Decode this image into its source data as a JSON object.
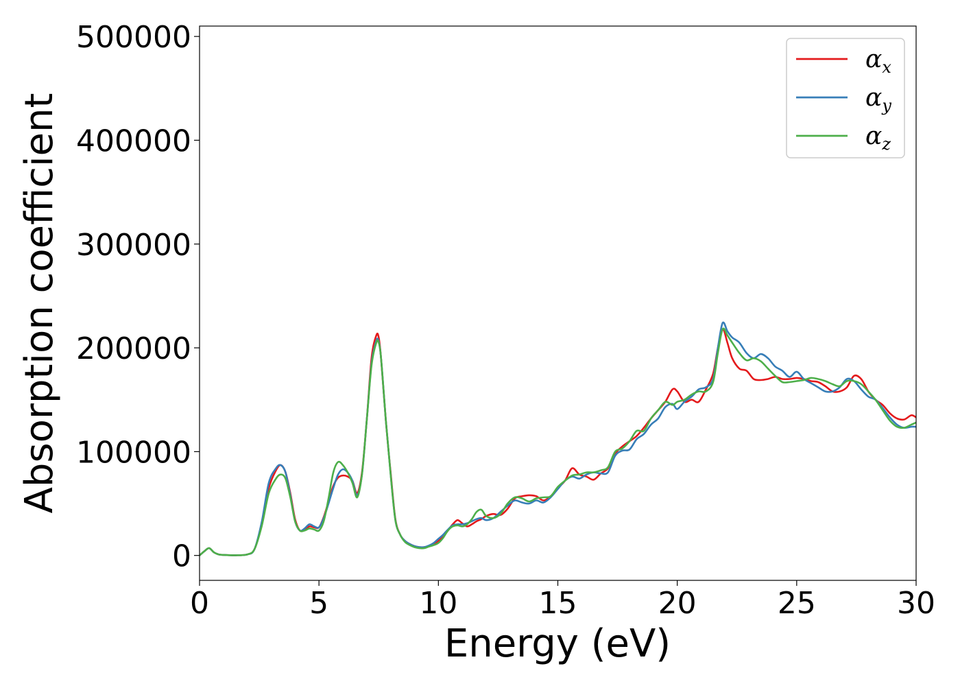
{
  "chart_data": {
    "type": "line",
    "xlabel": "Energy (eV)",
    "ylabel": "Absorption coefficient",
    "xlim": [
      0,
      30
    ],
    "ylim": [
      -24000,
      510000
    ],
    "xticks": [
      0,
      5,
      10,
      15,
      20,
      25,
      30
    ],
    "yticks": [
      0,
      100000,
      200000,
      300000,
      400000,
      500000
    ],
    "xtick_labels": [
      "0",
      "5",
      "10",
      "15",
      "20",
      "25",
      "30"
    ],
    "ytick_labels": [
      "0",
      "100000",
      "200000",
      "300000",
      "400000",
      "500000"
    ],
    "grid": false,
    "legend_position": "top-right",
    "series": [
      {
        "name": "αx",
        "symbol": "α",
        "subscript": "x",
        "color": "#e41a1c",
        "x": [
          0,
          0.2,
          0.4,
          0.6,
          0.8,
          1.0,
          1.5,
          2.0,
          2.3,
          2.6,
          2.9,
          3.2,
          3.4,
          3.6,
          3.8,
          4.0,
          4.2,
          4.4,
          4.6,
          4.8,
          5.0,
          5.2,
          5.4,
          5.6,
          5.8,
          6.0,
          6.2,
          6.4,
          6.6,
          6.8,
          7.0,
          7.2,
          7.4,
          7.5,
          7.6,
          7.8,
          8.0,
          8.2,
          8.4,
          8.6,
          8.8,
          9.0,
          9.2,
          9.4,
          9.6,
          9.8,
          10.0,
          10.2,
          10.4,
          10.6,
          10.8,
          11.0,
          11.2,
          11.4,
          11.6,
          11.8,
          12.0,
          12.3,
          12.6,
          12.9,
          13.2,
          13.5,
          13.8,
          14.1,
          14.4,
          14.7,
          15.0,
          15.3,
          15.6,
          15.9,
          16.2,
          16.5,
          16.8,
          17.1,
          17.4,
          17.7,
          18.0,
          18.3,
          18.6,
          18.9,
          19.2,
          19.5,
          19.8,
          20.0,
          20.3,
          20.6,
          20.9,
          21.2,
          21.5,
          21.7,
          21.9,
          22.1,
          22.3,
          22.6,
          22.9,
          23.2,
          23.5,
          23.8,
          24.1,
          24.4,
          24.7,
          25.0,
          25.3,
          25.6,
          25.9,
          26.2,
          26.5,
          26.8,
          27.1,
          27.4,
          27.7,
          28.0,
          28.3,
          28.6,
          28.9,
          29.2,
          29.5,
          29.8,
          30.0
        ],
        "y": [
          0,
          4000,
          7000,
          3000,
          1000,
          500,
          200,
          1000,
          6000,
          30000,
          65000,
          82000,
          87000,
          80000,
          60000,
          35000,
          24000,
          25000,
          28000,
          27000,
          27000,
          37000,
          52000,
          67000,
          75000,
          77000,
          76000,
          72000,
          60000,
          80000,
          130000,
          190000,
          212000,
          210000,
          190000,
          130000,
          80000,
          35000,
          20000,
          14000,
          11000,
          9000,
          8000,
          8000,
          9000,
          11000,
          14000,
          18000,
          24000,
          30000,
          34000,
          31000,
          28000,
          30000,
          33000,
          35000,
          38000,
          40000,
          39000,
          45000,
          55000,
          57000,
          58000,
          57000,
          53000,
          57000,
          65000,
          72000,
          84000,
          78000,
          76000,
          73000,
          79000,
          84000,
          98000,
          105000,
          110000,
          115000,
          123000,
          132000,
          140000,
          148000,
          160000,
          158000,
          148000,
          150000,
          148000,
          160000,
          175000,
          200000,
          218000,
          205000,
          190000,
          180000,
          178000,
          170000,
          169000,
          170000,
          172000,
          170000,
          170000,
          171000,
          170000,
          168000,
          167000,
          163000,
          158000,
          158000,
          162000,
          173000,
          170000,
          158000,
          150000,
          145000,
          137000,
          132000,
          131000,
          135000,
          133000
        ]
      },
      {
        "name": "αy",
        "symbol": "α",
        "subscript": "y",
        "color": "#377eb8",
        "x": [
          0,
          0.2,
          0.4,
          0.6,
          0.8,
          1.0,
          1.5,
          2.0,
          2.3,
          2.6,
          2.9,
          3.2,
          3.4,
          3.6,
          3.8,
          4.0,
          4.2,
          4.4,
          4.6,
          4.8,
          5.0,
          5.2,
          5.4,
          5.6,
          5.8,
          6.0,
          6.2,
          6.4,
          6.6,
          6.8,
          7.0,
          7.2,
          7.4,
          7.5,
          7.6,
          7.8,
          8.0,
          8.2,
          8.4,
          8.6,
          8.8,
          9.0,
          9.2,
          9.4,
          9.6,
          9.8,
          10.0,
          10.2,
          10.4,
          10.6,
          10.8,
          11.0,
          11.2,
          11.4,
          11.6,
          11.8,
          12.0,
          12.3,
          12.6,
          12.9,
          13.2,
          13.5,
          13.8,
          14.1,
          14.4,
          14.7,
          15.0,
          15.3,
          15.6,
          15.9,
          16.2,
          16.5,
          16.8,
          17.1,
          17.4,
          17.7,
          18.0,
          18.3,
          18.6,
          18.9,
          19.2,
          19.5,
          19.8,
          20.0,
          20.3,
          20.6,
          20.9,
          21.2,
          21.5,
          21.7,
          21.9,
          22.1,
          22.3,
          22.6,
          22.9,
          23.2,
          23.5,
          23.8,
          24.1,
          24.4,
          24.7,
          25.0,
          25.3,
          25.6,
          25.9,
          26.2,
          26.5,
          26.8,
          27.1,
          27.4,
          27.7,
          28.0,
          28.3,
          28.6,
          28.9,
          29.2,
          29.5,
          29.8,
          30.0
        ],
        "y": [
          0,
          4000,
          7000,
          3000,
          1000,
          500,
          200,
          1000,
          6000,
          32000,
          70000,
          84000,
          87000,
          80000,
          58000,
          33000,
          24000,
          26000,
          30000,
          28000,
          27000,
          36000,
          50000,
          65000,
          78000,
          83000,
          80000,
          72000,
          58000,
          78000,
          130000,
          185000,
          207000,
          206000,
          190000,
          130000,
          78000,
          34000,
          20000,
          14000,
          11000,
          9000,
          8000,
          8000,
          9500,
          12000,
          16000,
          20000,
          25000,
          29000,
          30000,
          30000,
          31000,
          33000,
          35000,
          36000,
          34000,
          36000,
          42000,
          48000,
          53000,
          51000,
          50000,
          53000,
          51000,
          56000,
          64000,
          72000,
          76000,
          74000,
          78000,
          80000,
          79000,
          80000,
          96000,
          101000,
          102000,
          112000,
          117000,
          126000,
          132000,
          143000,
          146000,
          141000,
          148000,
          153000,
          160000,
          162000,
          170000,
          200000,
          224000,
          216000,
          210000,
          205000,
          195000,
          190000,
          194000,
          190000,
          182000,
          178000,
          172000,
          177000,
          170000,
          166000,
          162000,
          158000,
          158000,
          162000,
          170000,
          168000,
          160000,
          153000,
          150000,
          142000,
          133000,
          126000,
          123000,
          124000,
          124000
        ]
      },
      {
        "name": "αz",
        "symbol": "α",
        "subscript": "z",
        "color": "#4daf4a",
        "x": [
          0,
          0.2,
          0.4,
          0.6,
          0.8,
          1.0,
          1.5,
          2.0,
          2.3,
          2.6,
          2.9,
          3.2,
          3.4,
          3.6,
          3.8,
          4.0,
          4.2,
          4.4,
          4.6,
          4.8,
          5.0,
          5.2,
          5.4,
          5.6,
          5.8,
          6.0,
          6.2,
          6.4,
          6.6,
          6.8,
          7.0,
          7.2,
          7.4,
          7.5,
          7.6,
          7.8,
          8.0,
          8.2,
          8.4,
          8.6,
          8.8,
          9.0,
          9.2,
          9.4,
          9.6,
          9.8,
          10.0,
          10.2,
          10.4,
          10.6,
          10.8,
          11.0,
          11.2,
          11.4,
          11.6,
          11.8,
          12.0,
          12.3,
          12.6,
          12.9,
          13.2,
          13.5,
          13.8,
          14.1,
          14.4,
          14.7,
          15.0,
          15.3,
          15.6,
          15.9,
          16.2,
          16.5,
          16.8,
          17.1,
          17.4,
          17.7,
          18.0,
          18.3,
          18.6,
          18.9,
          19.2,
          19.5,
          19.8,
          20.0,
          20.3,
          20.6,
          20.9,
          21.2,
          21.5,
          21.7,
          21.9,
          22.1,
          22.3,
          22.6,
          22.9,
          23.2,
          23.5,
          23.8,
          24.1,
          24.4,
          24.7,
          25.0,
          25.3,
          25.6,
          25.9,
          26.2,
          26.5,
          26.8,
          27.1,
          27.4,
          27.7,
          28.0,
          28.3,
          28.6,
          28.9,
          29.2,
          29.5,
          29.8,
          30.0
        ],
        "y": [
          0,
          4000,
          7000,
          3000,
          1000,
          500,
          200,
          1000,
          6000,
          28000,
          60000,
          74000,
          78000,
          74000,
          56000,
          33000,
          24000,
          24000,
          26000,
          25000,
          24000,
          33000,
          55000,
          80000,
          90000,
          87000,
          80000,
          70000,
          56000,
          78000,
          130000,
          183000,
          205000,
          205000,
          190000,
          130000,
          78000,
          34000,
          20000,
          13000,
          10000,
          8000,
          7000,
          7000,
          8500,
          10000,
          12000,
          17000,
          24000,
          28000,
          29000,
          28000,
          30000,
          35000,
          42000,
          44000,
          38000,
          36000,
          40000,
          50000,
          56000,
          55000,
          52000,
          55000,
          56000,
          57000,
          66000,
          72000,
          77000,
          78000,
          80000,
          80000,
          82000,
          85000,
          100000,
          103000,
          110000,
          120000,
          120000,
          132000,
          140000,
          148000,
          145000,
          148000,
          150000,
          155000,
          158000,
          158000,
          167000,
          195000,
          218000,
          212000,
          205000,
          195000,
          188000,
          190000,
          187000,
          180000,
          173000,
          167000,
          167000,
          168000,
          169000,
          171000,
          170000,
          168000,
          165000,
          163000,
          168000,
          168000,
          165000,
          158000,
          150000,
          140000,
          130000,
          124000,
          123000,
          126000,
          128000
        ]
      }
    ]
  }
}
